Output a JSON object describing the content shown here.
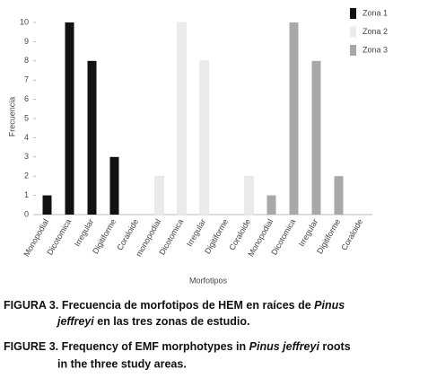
{
  "chart_data": {
    "type": "bar",
    "categories": [
      "Monopodial",
      "Dicotomica",
      "Irregular",
      "Digitiforme",
      "Coraloide",
      "monopodial",
      "Dicotomica",
      "Irregular",
      "Digitiforme",
      "Coraloide",
      "Monopodial",
      "Dicotomica",
      "Irregular",
      "Digitiforme",
      "Coraloide"
    ],
    "series": [
      {
        "name": "Zona 1",
        "color": "#111111",
        "values": [
          1,
          10,
          8,
          3,
          0,
          null,
          null,
          null,
          null,
          null,
          null,
          null,
          null,
          null,
          null
        ]
      },
      {
        "name": "Zona 2",
        "color": "#ebebeb",
        "values": [
          null,
          null,
          null,
          null,
          null,
          2,
          10,
          8,
          0,
          2,
          null,
          null,
          null,
          null,
          null
        ]
      },
      {
        "name": "Zona 3",
        "color": "#a8a8a8",
        "values": [
          null,
          null,
          null,
          null,
          null,
          null,
          null,
          null,
          null,
          null,
          1,
          10,
          8,
          2,
          0
        ]
      }
    ],
    "ylim": [
      0,
      10
    ],
    "yticks": [
      0,
      1,
      2,
      3,
      4,
      5,
      6,
      7,
      8,
      9,
      10
    ],
    "y_label": "Frecuencia",
    "x_label": "Morfotipos"
  },
  "caption_es": [
    "FIGURA 3.  Frecuencia  de  morfotipos de HEM en  raíces de ",
    "Pinus",
    "jeffreyi",
    " en las tres zonas de estudio."
  ],
  "caption_en": [
    "FIGURE 3. Frequency of EMF morphotypes in ",
    "Pinus jeffreyi",
    " roots",
    "in the three study areas."
  ]
}
